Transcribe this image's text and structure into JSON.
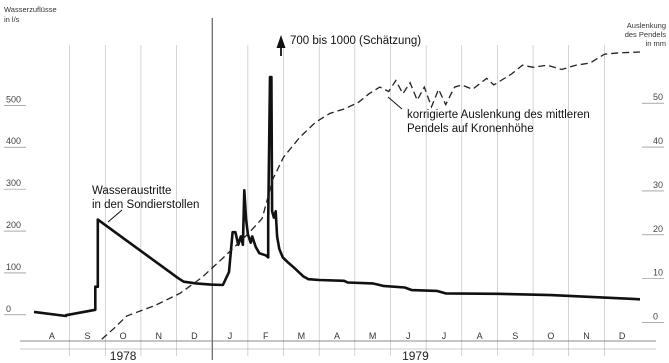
{
  "chart_data": {
    "type": "line",
    "left_axis": {
      "title_lines": [
        "Wasserzuflüsse",
        "in l/s"
      ],
      "ticks": [
        0,
        100,
        200,
        300,
        400,
        500
      ],
      "range": [
        -60,
        620
      ]
    },
    "right_axis": {
      "title_lines": [
        "Auslenkung",
        "des Pendels",
        "in mm"
      ],
      "ticks": [
        0,
        10,
        20,
        30,
        40,
        50
      ],
      "range": [
        -4,
        61
      ]
    },
    "x_axis": {
      "months": [
        "A",
        "S",
        "O",
        "N",
        "D",
        "J",
        "F",
        "M",
        "A",
        "M",
        "J",
        "J",
        "A",
        "S",
        "O",
        "N",
        "D"
      ],
      "range": [
        0,
        17
      ],
      "year_divider": 5,
      "years": [
        {
          "label": "1978",
          "center": 2.5
        },
        {
          "label": "1979",
          "center": 10.7
        }
      ]
    },
    "series": [
      {
        "name": "Wasseraustritte in den Sondierstollen",
        "axis": "left",
        "style": "solid",
        "points": [
          [
            0.0,
            0
          ],
          [
            0.9,
            -10
          ],
          [
            0.9,
            -8
          ],
          [
            1.72,
            5
          ],
          [
            1.72,
            60
          ],
          [
            1.79,
            60
          ],
          [
            1.79,
            220
          ],
          [
            4.05,
            80
          ],
          [
            4.2,
            72
          ],
          [
            4.55,
            68
          ],
          [
            4.95,
            65
          ],
          [
            5.3,
            64
          ],
          [
            5.47,
            95
          ],
          [
            5.57,
            190
          ],
          [
            5.65,
            190
          ],
          [
            5.73,
            160
          ],
          [
            5.8,
            180
          ],
          [
            5.86,
            160
          ],
          [
            5.9,
            290
          ],
          [
            5.95,
            220
          ],
          [
            6.0,
            185
          ],
          [
            6.08,
            165
          ],
          [
            6.12,
            180
          ],
          [
            6.22,
            155
          ],
          [
            6.32,
            140
          ],
          [
            6.5,
            135
          ],
          [
            6.57,
            130
          ],
          [
            6.57,
            220
          ],
          [
            6.62,
            560
          ],
          [
            6.66,
            560
          ],
          [
            6.68,
            240
          ],
          [
            6.73,
            225
          ],
          [
            6.78,
            240
          ],
          [
            6.82,
            180
          ],
          [
            6.88,
            150
          ],
          [
            6.98,
            130
          ],
          [
            7.1,
            120
          ],
          [
            7.3,
            105
          ],
          [
            7.55,
            85
          ],
          [
            7.7,
            78
          ],
          [
            8.0,
            76
          ],
          [
            8.7,
            74
          ],
          [
            8.8,
            70
          ],
          [
            9.5,
            68
          ],
          [
            9.8,
            62
          ],
          [
            10.4,
            58
          ],
          [
            10.6,
            52
          ],
          [
            11.3,
            50
          ],
          [
            11.55,
            44
          ],
          [
            13.0,
            43
          ],
          [
            14.5,
            40
          ],
          [
            17.0,
            30
          ]
        ]
      },
      {
        "name": "korrigierte Auslenkung des mittleren Pendels auf Kronenhöhe",
        "axis": "right",
        "style": "dashed",
        "points": [
          [
            1.9,
            -4.5
          ],
          [
            2.25,
            -2.0
          ],
          [
            2.6,
            0.8
          ],
          [
            3.4,
            3.2
          ],
          [
            4.1,
            6.0
          ],
          [
            4.7,
            9.5
          ],
          [
            5.3,
            14.0
          ],
          [
            6.0,
            19.5
          ],
          [
            6.4,
            23.0
          ],
          [
            6.7,
            32.0
          ],
          [
            7.0,
            37.0
          ],
          [
            7.45,
            41.5
          ],
          [
            7.9,
            45.0
          ],
          [
            8.3,
            47.0
          ],
          [
            8.7,
            48.0
          ],
          [
            9.1,
            49.5
          ],
          [
            9.4,
            51.5
          ],
          [
            9.7,
            53.0
          ],
          [
            9.95,
            52.0
          ],
          [
            10.15,
            54.5
          ],
          [
            10.35,
            51.5
          ],
          [
            10.55,
            54.0
          ],
          [
            10.75,
            50.0
          ],
          [
            10.95,
            53.0
          ],
          [
            11.15,
            48.5
          ],
          [
            11.35,
            52.5
          ],
          [
            11.55,
            49.0
          ],
          [
            11.8,
            53.0
          ],
          [
            12.0,
            53.5
          ],
          [
            12.3,
            52.5
          ],
          [
            12.7,
            55.0
          ],
          [
            12.9,
            53.5
          ],
          [
            13.1,
            54.5
          ],
          [
            13.4,
            56.0
          ],
          [
            13.7,
            58.0
          ],
          [
            14.0,
            57.5
          ],
          [
            14.4,
            58.0
          ],
          [
            14.8,
            57.0
          ],
          [
            15.2,
            58.0
          ],
          [
            15.6,
            58.5
          ],
          [
            16.0,
            60.5
          ],
          [
            16.4,
            60.8
          ],
          [
            17.0,
            61.0
          ]
        ]
      }
    ],
    "annotations": {
      "peak": "700 bis 1000  (Schätzung)",
      "water_label": [
        "Wasseraustritte",
        "in den Sondierstollen"
      ],
      "pendulum_label": [
        "korrigierte Auslenkung des mittleren",
        "Pendels auf Kronenhöhe"
      ]
    }
  }
}
